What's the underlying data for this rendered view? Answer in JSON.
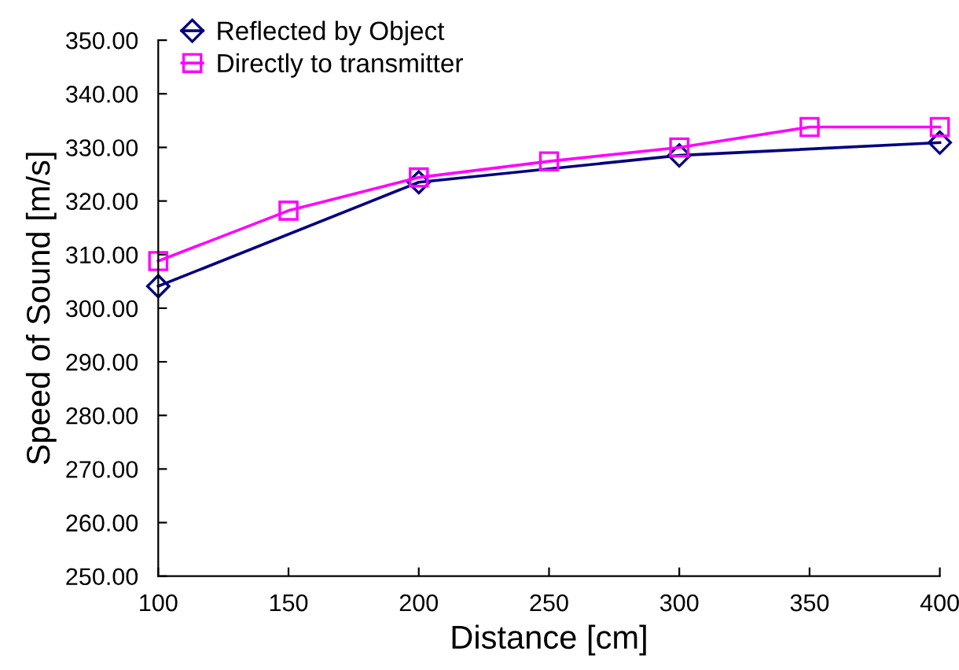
{
  "chart_data": {
    "type": "line",
    "xlabel": "Distance [cm]",
    "ylabel": "Speed of Sound [m/s]",
    "xlim": [
      100,
      400
    ],
    "xticks": [
      100,
      150,
      200,
      250,
      300,
      350,
      400
    ],
    "ylim": [
      250,
      350
    ],
    "yticks": [
      {
        "value": 250,
        "label": "250.00"
      },
      {
        "value": 260,
        "label": "260.00"
      },
      {
        "value": 270,
        "label": "270.00"
      },
      {
        "value": 280,
        "label": "280.00"
      },
      {
        "value": 290,
        "label": "290.00"
      },
      {
        "value": 300,
        "label": "300.00"
      },
      {
        "value": 310,
        "label": "310.00"
      },
      {
        "value": 320,
        "label": "320.00"
      },
      {
        "value": 330,
        "label": "330.00"
      },
      {
        "value": 340,
        "label": "340.00"
      },
      {
        "value": 350,
        "label": "350.00"
      }
    ],
    "grid": false,
    "legend": "top left",
    "line_style": "solid",
    "series": [
      {
        "name": "Reflected by Object",
        "color": "#000080",
        "marker": "diamond",
        "x": [
          100,
          200,
          300,
          400
        ],
        "values": [
          304.1,
          323.5,
          328.5,
          330.9
        ]
      },
      {
        "name": "Directly to transmitter",
        "color": "#ff00ff",
        "marker": "square",
        "x": [
          100,
          150,
          200,
          250,
          300,
          350,
          400
        ],
        "values": [
          308.8,
          318.2,
          324.4,
          327.4,
          330.0,
          333.8,
          333.8
        ]
      }
    ]
  }
}
